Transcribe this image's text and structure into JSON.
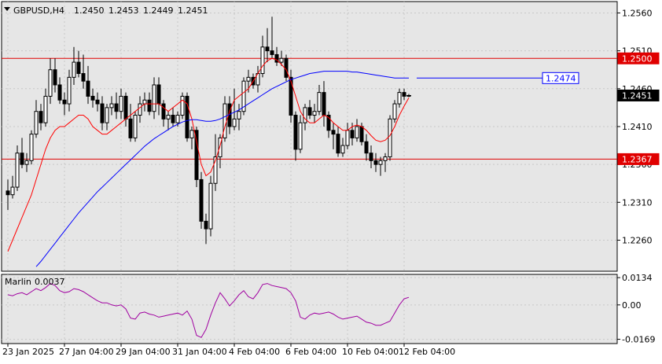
{
  "chart_data": {
    "type": "candlestick",
    "symbol_label": "GBPUSD,H4",
    "ohlc_label": {
      "open": "1.2450",
      "high": "1.2453",
      "low": "1.2449",
      "close": "1.2451"
    },
    "price_ticks": [
      "1.2560",
      "1.2510",
      "1.2460",
      "1.2410",
      "1.2360",
      "1.2310",
      "1.2260"
    ],
    "price_range": [
      1.2219,
      1.2575
    ],
    "date_ticks": [
      {
        "index": 0,
        "label": "23 Jan 2025"
      },
      {
        "index": 12,
        "label": "27 Jan 04:00"
      },
      {
        "index": 24,
        "label": "29 Jan 04:00"
      },
      {
        "index": 36,
        "label": "31 Jan 04:00"
      },
      {
        "index": 48,
        "label": "4 Feb 04:00"
      },
      {
        "index": 60,
        "label": "6 Feb 04:00"
      },
      {
        "index": 72,
        "label": "10 Feb 04:00"
      },
      {
        "index": 84,
        "label": "12 Feb 04:00"
      }
    ],
    "candles": [
      [
        1.2325,
        1.234,
        1.23,
        1.232
      ],
      [
        1.232,
        1.2345,
        1.2315,
        1.233
      ],
      [
        1.233,
        1.2385,
        1.2325,
        1.2375
      ],
      [
        1.2375,
        1.2395,
        1.2355,
        1.236
      ],
      [
        1.236,
        1.2375,
        1.235,
        1.2365
      ],
      [
        1.2365,
        1.2405,
        1.236,
        1.24
      ],
      [
        1.24,
        1.2445,
        1.2395,
        1.243
      ],
      [
        1.243,
        1.244,
        1.2405,
        1.2415
      ],
      [
        1.2415,
        1.246,
        1.241,
        1.245
      ],
      [
        1.245,
        1.25,
        1.244,
        1.2485
      ],
      [
        1.2485,
        1.25,
        1.2455,
        1.2465
      ],
      [
        1.2465,
        1.2475,
        1.244,
        1.2445
      ],
      [
        1.2445,
        1.2455,
        1.2425,
        1.244
      ],
      [
        1.244,
        1.2485,
        1.243,
        1.2475
      ],
      [
        1.2475,
        1.2515,
        1.2465,
        1.2495
      ],
      [
        1.2495,
        1.251,
        1.2475,
        1.248
      ],
      [
        1.248,
        1.2505,
        1.246,
        1.247
      ],
      [
        1.247,
        1.249,
        1.244,
        1.245
      ],
      [
        1.245,
        1.246,
        1.2435,
        1.2445
      ],
      [
        1.2445,
        1.2455,
        1.243,
        1.244
      ],
      [
        1.244,
        1.245,
        1.2405,
        1.2415
      ],
      [
        1.2415,
        1.244,
        1.2405,
        1.2435
      ],
      [
        1.2435,
        1.245,
        1.2425,
        1.244
      ],
      [
        1.244,
        1.2455,
        1.242,
        1.243
      ],
      [
        1.243,
        1.246,
        1.242,
        1.245
      ],
      [
        1.245,
        1.2455,
        1.241,
        1.242
      ],
      [
        1.242,
        1.244,
        1.239,
        1.2395
      ],
      [
        1.2395,
        1.243,
        1.239,
        1.2425
      ],
      [
        1.2425,
        1.245,
        1.2415,
        1.244
      ],
      [
        1.244,
        1.2455,
        1.243,
        1.2445
      ],
      [
        1.2445,
        1.2455,
        1.2425,
        1.243
      ],
      [
        1.243,
        1.2475,
        1.242,
        1.2465
      ],
      [
        1.2465,
        1.2475,
        1.2425,
        1.244
      ],
      [
        1.244,
        1.2445,
        1.241,
        1.242
      ],
      [
        1.242,
        1.243,
        1.2405,
        1.2425
      ],
      [
        1.2425,
        1.2435,
        1.241,
        1.2415
      ],
      [
        1.2415,
        1.243,
        1.241,
        1.2425
      ],
      [
        1.2425,
        1.2455,
        1.242,
        1.245
      ],
      [
        1.245,
        1.2455,
        1.239,
        1.2395
      ],
      [
        1.2395,
        1.241,
        1.238,
        1.2405
      ],
      [
        1.2405,
        1.241,
        1.233,
        1.234
      ],
      [
        1.234,
        1.235,
        1.2275,
        1.2285
      ],
      [
        1.2285,
        1.2295,
        1.2255,
        1.2275
      ],
      [
        1.2275,
        1.2345,
        1.2265,
        1.2335
      ],
      [
        1.2335,
        1.24,
        1.2325,
        1.237
      ],
      [
        1.237,
        1.24,
        1.2355,
        1.2395
      ],
      [
        1.2395,
        1.245,
        1.239,
        1.244
      ],
      [
        1.244,
        1.245,
        1.24,
        1.241
      ],
      [
        1.241,
        1.246,
        1.2405,
        1.242
      ],
      [
        1.242,
        1.244,
        1.2405,
        1.243
      ],
      [
        1.243,
        1.2475,
        1.2425,
        1.247
      ],
      [
        1.247,
        1.2485,
        1.2455,
        1.2475
      ],
      [
        1.2475,
        1.248,
        1.246,
        1.2465
      ],
      [
        1.2465,
        1.249,
        1.2455,
        1.248
      ],
      [
        1.248,
        1.253,
        1.2475,
        1.2515
      ],
      [
        1.2515,
        1.254,
        1.2495,
        1.251
      ],
      [
        1.251,
        1.2555,
        1.25,
        1.2505
      ],
      [
        1.2505,
        1.2515,
        1.249,
        1.2495
      ],
      [
        1.2495,
        1.251,
        1.249,
        1.25
      ],
      [
        1.25,
        1.2505,
        1.247,
        1.2475
      ],
      [
        1.2475,
        1.2485,
        1.2415,
        1.2425
      ],
      [
        1.2425,
        1.243,
        1.2365,
        1.238
      ],
      [
        1.238,
        1.2425,
        1.2375,
        1.2415
      ],
      [
        1.2415,
        1.244,
        1.2405,
        1.2435
      ],
      [
        1.2435,
        1.2445,
        1.242,
        1.2425
      ],
      [
        1.2425,
        1.244,
        1.2415,
        1.243
      ],
      [
        1.243,
        1.2465,
        1.2425,
        1.2455
      ],
      [
        1.2455,
        1.247,
        1.241,
        1.2425
      ],
      [
        1.2425,
        1.243,
        1.2395,
        1.2405
      ],
      [
        1.2405,
        1.2415,
        1.238,
        1.24
      ],
      [
        1.24,
        1.241,
        1.237,
        1.2375
      ],
      [
        1.2375,
        1.2395,
        1.237,
        1.2385
      ],
      [
        1.2385,
        1.2415,
        1.238,
        1.2405
      ],
      [
        1.2405,
        1.2415,
        1.2385,
        1.2395
      ],
      [
        1.2395,
        1.242,
        1.239,
        1.241
      ],
      [
        1.241,
        1.2415,
        1.2385,
        1.239
      ],
      [
        1.239,
        1.24,
        1.2365,
        1.2375
      ],
      [
        1.2375,
        1.2385,
        1.2355,
        1.2365
      ],
      [
        1.2365,
        1.2375,
        1.235,
        1.236
      ],
      [
        1.236,
        1.237,
        1.2345,
        1.2365
      ],
      [
        1.2365,
        1.2375,
        1.235,
        1.237
      ],
      [
        1.237,
        1.2425,
        1.2365,
        1.242
      ],
      [
        1.242,
        1.2445,
        1.2415,
        1.244
      ],
      [
        1.244,
        1.246,
        1.2435,
        1.2455
      ],
      [
        1.2455,
        1.246,
        1.2445,
        1.245
      ],
      [
        1.245,
        1.2453,
        1.2449,
        1.2451
      ]
    ],
    "ma_fast": [
      1.2245,
      1.226,
      1.2275,
      1.229,
      1.2305,
      1.232,
      1.234,
      1.236,
      1.238,
      1.2395,
      1.2405,
      1.241,
      1.241,
      1.2415,
      1.242,
      1.2425,
      1.2425,
      1.242,
      1.241,
      1.2405,
      1.24,
      1.24,
      1.2405,
      1.241,
      1.2415,
      1.242,
      1.2425,
      1.243,
      1.2435,
      1.244,
      1.244,
      1.244,
      1.244,
      1.2435,
      1.243,
      1.2435,
      1.244,
      1.2445,
      1.244,
      1.242,
      1.239,
      1.236,
      1.2345,
      1.235,
      1.2365,
      1.2385,
      1.241,
      1.243,
      1.2445,
      1.245,
      1.2455,
      1.246,
      1.247,
      1.248,
      1.249,
      1.2497,
      1.25,
      1.2498,
      1.2492,
      1.2485,
      1.247,
      1.245,
      1.243,
      1.242,
      1.2415,
      1.2415,
      1.242,
      1.2425,
      1.2422,
      1.2415,
      1.241,
      1.2405,
      1.2405,
      1.241,
      1.2412,
      1.241,
      1.2405,
      1.2398,
      1.2392,
      1.239,
      1.2392,
      1.2398,
      1.241,
      1.2425,
      1.2437,
      1.2448
    ],
    "ma_slow": [
      null,
      null,
      null,
      null,
      null,
      null,
      1.2225,
      1.2232,
      1.224,
      1.2248,
      1.2256,
      1.2264,
      1.2272,
      1.228,
      1.2288,
      1.2296,
      1.2303,
      1.231,
      1.2317,
      1.2324,
      1.233,
      1.2336,
      1.2342,
      1.2348,
      1.2354,
      1.236,
      1.2366,
      1.2372,
      1.2378,
      1.2384,
      1.2389,
      1.2394,
      1.2398,
      1.2402,
      1.2406,
      1.241,
      1.2413,
      1.2416,
      1.2418,
      1.2419,
      1.2419,
      1.2418,
      1.2417,
      1.2417,
      1.2418,
      1.242,
      1.2423,
      1.2426,
      1.2429,
      1.2432,
      1.2436,
      1.244,
      1.2444,
      1.2448,
      1.2452,
      1.2456,
      1.246,
      1.2463,
      1.2466,
      1.2469,
      1.2472,
      1.2474,
      1.2476,
      1.2478,
      1.248,
      1.2481,
      1.2482,
      1.2483,
      1.2483,
      1.2483,
      1.2483,
      1.2483,
      1.2483,
      1.2482,
      1.2482,
      1.2481,
      1.248,
      1.2479,
      1.2478,
      1.2477,
      1.2476,
      1.2475,
      1.2474,
      1.2474,
      1.2474,
      1.2474
    ],
    "levels": [
      {
        "price": 1.25,
        "label": "1.2500"
      },
      {
        "price": 1.2367,
        "label": "1.2367"
      }
    ],
    "ma_slow_label": "1.2474",
    "current_price_label": "1.2451",
    "indicator": {
      "name": "Marlin",
      "value_label": "0.0037",
      "ticks": [
        "0.0134",
        "0.00",
        "-0.0169"
      ],
      "range": [
        -0.019,
        0.015
      ],
      "values": [
        0.005,
        0.0045,
        0.0055,
        0.006,
        0.005,
        0.0065,
        0.008,
        0.007,
        0.0085,
        0.0105,
        0.0095,
        0.007,
        0.006,
        0.0065,
        0.008,
        0.0075,
        0.0065,
        0.005,
        0.0035,
        0.002,
        0.001,
        0.001,
        0.0,
        -0.0005,
        0.0,
        -0.002,
        -0.0065,
        -0.007,
        -0.004,
        -0.0035,
        -0.0045,
        -0.005,
        -0.006,
        -0.0055,
        -0.005,
        -0.0045,
        -0.004,
        -0.005,
        -0.003,
        -0.007,
        -0.015,
        -0.016,
        -0.012,
        -0.005,
        0.001,
        0.006,
        0.003,
        -0.0005,
        0.002,
        0.005,
        0.007,
        0.004,
        0.003,
        0.006,
        0.01,
        0.0105,
        0.0095,
        0.009,
        0.0085,
        0.008,
        0.006,
        0.002,
        -0.006,
        -0.007,
        -0.005,
        -0.004,
        -0.0045,
        -0.004,
        -0.0035,
        -0.0045,
        -0.006,
        -0.007,
        -0.0065,
        -0.006,
        -0.0055,
        -0.007,
        -0.0085,
        -0.009,
        -0.01,
        -0.01,
        -0.009,
        -0.008,
        -0.004,
        0.0,
        0.003,
        0.0037
      ]
    },
    "colors": {
      "background": "#ffffff",
      "plot_bg": "#e6e6e6",
      "grid": "#c8c8c8",
      "ma_fast": "#ff0000",
      "ma_slow": "#0000ff",
      "level": "#e00000",
      "indicator": "#a000a0",
      "ma_slow_label_bg": "#ffffff",
      "ma_slow_label_border": "#0000ff",
      "ma_slow_label_text": "#0000ff",
      "level_label_text": "#ffffff",
      "current_label_bg": "#000000",
      "current_label_text": "#ffffff"
    }
  }
}
